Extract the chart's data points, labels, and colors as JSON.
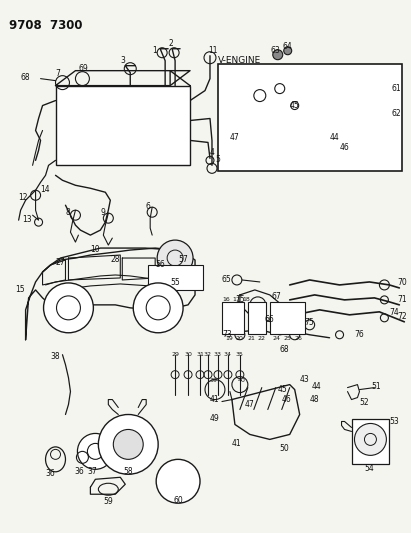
{
  "title": "9708  7300",
  "background_color": "#f5f5f0",
  "fig_width": 4.11,
  "fig_height": 5.33,
  "dpi": 100,
  "lc": "#1a1a1a",
  "lw_main": 0.8,
  "label_fs": 5.5
}
